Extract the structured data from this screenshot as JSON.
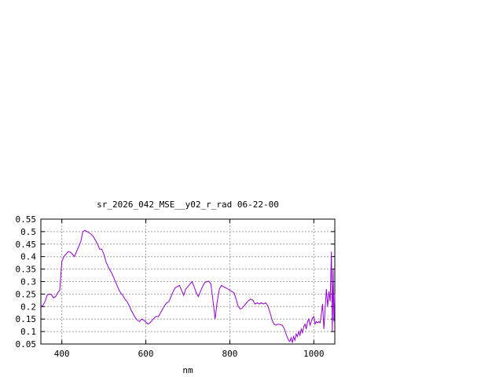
{
  "chart_data": {
    "type": "line",
    "title": "sr_2026_042_MSE__y02_r_rad 06-22-00",
    "xlabel": "nm",
    "ylabel": "",
    "xlim": [
      350,
      1050
    ],
    "ylim": [
      0.05,
      0.55
    ],
    "xticks": [
      400,
      600,
      800,
      1000
    ],
    "yticks": [
      0.05,
      0.1,
      0.15,
      0.2,
      0.25,
      0.3,
      0.35,
      0.4,
      0.45,
      0.5,
      0.55
    ],
    "ytick_labels": [
      "0.05",
      "0.1",
      "0.15",
      "0.2",
      "0.25",
      "0.3",
      "0.35",
      "0.4",
      "0.45",
      "0.5",
      "0.55"
    ],
    "grid": true,
    "line_color": "#9400d3",
    "series": [
      {
        "x": [
          350,
          355,
          360,
          365,
          370,
          375,
          380,
          385,
          390,
          395,
          400,
          405,
          410,
          415,
          420,
          425,
          430,
          435,
          440,
          445,
          450,
          455,
          460,
          465,
          470,
          475,
          480,
          485,
          490,
          495,
          500,
          505,
          510,
          515,
          520,
          525,
          530,
          535,
          540,
          545,
          550,
          555,
          560,
          565,
          570,
          575,
          580,
          585,
          590,
          595,
          600,
          605,
          610,
          615,
          620,
          625,
          630,
          635,
          640,
          645,
          650,
          655,
          660,
          665,
          670,
          675,
          680,
          685,
          690,
          695,
          700,
          705,
          710,
          715,
          720,
          725,
          730,
          735,
          740,
          745,
          750,
          755,
          760,
          765,
          770,
          775,
          780,
          785,
          790,
          795,
          800,
          805,
          810,
          815,
          820,
          825,
          830,
          835,
          840,
          845,
          850,
          855,
          860,
          865,
          870,
          875,
          880,
          885,
          890,
          895,
          900,
          905,
          910,
          915,
          920,
          925,
          930,
          935,
          940,
          943,
          946,
          949,
          952,
          955,
          958,
          961,
          964,
          967,
          970,
          973,
          976,
          979,
          982,
          985,
          988,
          991,
          994,
          997,
          1000,
          1003,
          1006,
          1009,
          1012,
          1015,
          1018,
          1021,
          1024,
          1027,
          1030,
          1033,
          1036,
          1039,
          1042,
          1044,
          1046,
          1048,
          1050
        ],
        "y": [
          0.2,
          0.205,
          0.22,
          0.245,
          0.25,
          0.248,
          0.235,
          0.24,
          0.255,
          0.265,
          0.38,
          0.4,
          0.41,
          0.42,
          0.418,
          0.41,
          0.4,
          0.42,
          0.44,
          0.46,
          0.5,
          0.505,
          0.5,
          0.495,
          0.49,
          0.48,
          0.465,
          0.45,
          0.43,
          0.43,
          0.41,
          0.38,
          0.36,
          0.345,
          0.33,
          0.31,
          0.29,
          0.27,
          0.255,
          0.245,
          0.23,
          0.22,
          0.205,
          0.185,
          0.17,
          0.155,
          0.145,
          0.14,
          0.15,
          0.145,
          0.138,
          0.13,
          0.135,
          0.145,
          0.155,
          0.16,
          0.16,
          0.175,
          0.19,
          0.205,
          0.215,
          0.22,
          0.24,
          0.26,
          0.275,
          0.28,
          0.285,
          0.265,
          0.245,
          0.27,
          0.28,
          0.29,
          0.3,
          0.28,
          0.255,
          0.24,
          0.26,
          0.28,
          0.295,
          0.3,
          0.302,
          0.29,
          0.22,
          0.15,
          0.22,
          0.27,
          0.285,
          0.28,
          0.275,
          0.27,
          0.265,
          0.26,
          0.255,
          0.23,
          0.2,
          0.19,
          0.195,
          0.205,
          0.215,
          0.225,
          0.23,
          0.225,
          0.21,
          0.215,
          0.21,
          0.215,
          0.21,
          0.215,
          0.205,
          0.18,
          0.15,
          0.13,
          0.125,
          0.13,
          0.128,
          0.125,
          0.11,
          0.085,
          0.065,
          0.06,
          0.075,
          0.055,
          0.08,
          0.065,
          0.09,
          0.08,
          0.1,
          0.085,
          0.11,
          0.095,
          0.12,
          0.13,
          0.11,
          0.14,
          0.15,
          0.125,
          0.14,
          0.155,
          0.16,
          0.13,
          0.14,
          0.135,
          0.14,
          0.135,
          0.17,
          0.21,
          0.11,
          0.19,
          0.27,
          0.2,
          0.26,
          0.22,
          0.42,
          0.1,
          0.35,
          0.14,
          0.25
        ]
      }
    ]
  }
}
